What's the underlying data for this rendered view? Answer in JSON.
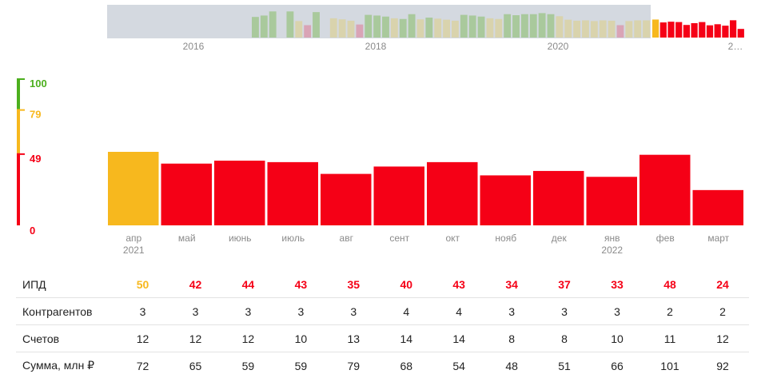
{
  "colors": {
    "green": "#4caf1e",
    "yellow": "#f7b81e",
    "red": "#f50016",
    "overview_bg": "#d4d9e0",
    "overview_green": "#a9c99c",
    "overview_tan": "#d9d3ad",
    "overview_pink": "#d9a4b6"
  },
  "overview": {
    "year_labels": [
      "2016",
      "2018",
      "2020",
      "2…"
    ],
    "history_values": [
      60,
      64,
      76,
      0,
      76,
      48,
      36,
      74,
      0,
      56,
      53,
      49,
      38,
      66,
      64,
      61,
      56,
      54,
      68,
      53,
      58,
      55,
      52,
      49,
      66,
      64,
      61,
      56,
      54,
      68,
      65,
      68,
      68,
      71,
      68,
      62,
      52,
      49,
      50,
      48,
      50,
      49,
      36,
      48,
      50,
      50
    ],
    "history_colors": [
      "g",
      "g",
      "g",
      "g",
      "g",
      "t",
      "p",
      "g",
      "g",
      "t",
      "t",
      "t",
      "p",
      "g",
      "g",
      "g",
      "t",
      "g",
      "g",
      "t",
      "g",
      "t",
      "t",
      "t",
      "g",
      "g",
      "g",
      "t",
      "t",
      "g",
      "g",
      "g",
      "g",
      "g",
      "g",
      "t",
      "t",
      "t",
      "t",
      "t",
      "t",
      "t",
      "p",
      "t",
      "t",
      "t"
    ],
    "recent_values": [
      50,
      42,
      44,
      43,
      35,
      40,
      43,
      34,
      37,
      33,
      48,
      24
    ]
  },
  "scale": {
    "levels": [
      "100",
      "79",
      "49",
      "0"
    ]
  },
  "chart_data": {
    "type": "bar",
    "categories": [
      "апр",
      "май",
      "июнь",
      "июль",
      "авг",
      "сент",
      "окт",
      "нояб",
      "дек",
      "янв",
      "фев",
      "март"
    ],
    "year_marks": [
      "2021",
      "",
      "",
      "",
      "",
      "",
      "",
      "",
      "",
      "2022",
      "",
      ""
    ],
    "values": [
      50,
      42,
      44,
      43,
      35,
      40,
      43,
      34,
      37,
      33,
      48,
      24
    ],
    "ylim": [
      0,
      100
    ],
    "thresholds": [
      49,
      79,
      100
    ]
  },
  "table": {
    "rows": [
      {
        "label": "ИПД",
        "values": [
          "50",
          "42",
          "44",
          "43",
          "35",
          "40",
          "43",
          "34",
          "37",
          "33",
          "48",
          "24"
        ]
      },
      {
        "label": "Контрагентов",
        "values": [
          "3",
          "3",
          "3",
          "3",
          "3",
          "4",
          "4",
          "3",
          "3",
          "3",
          "2",
          "2"
        ]
      },
      {
        "label": "Счетов",
        "values": [
          "12",
          "12",
          "12",
          "10",
          "13",
          "14",
          "14",
          "8",
          "8",
          "10",
          "11",
          "12"
        ]
      },
      {
        "label": "Сумма, млн ₽",
        "values": [
          "72",
          "65",
          "59",
          "59",
          "79",
          "68",
          "54",
          "48",
          "51",
          "66",
          "101",
          "92"
        ]
      }
    ]
  }
}
